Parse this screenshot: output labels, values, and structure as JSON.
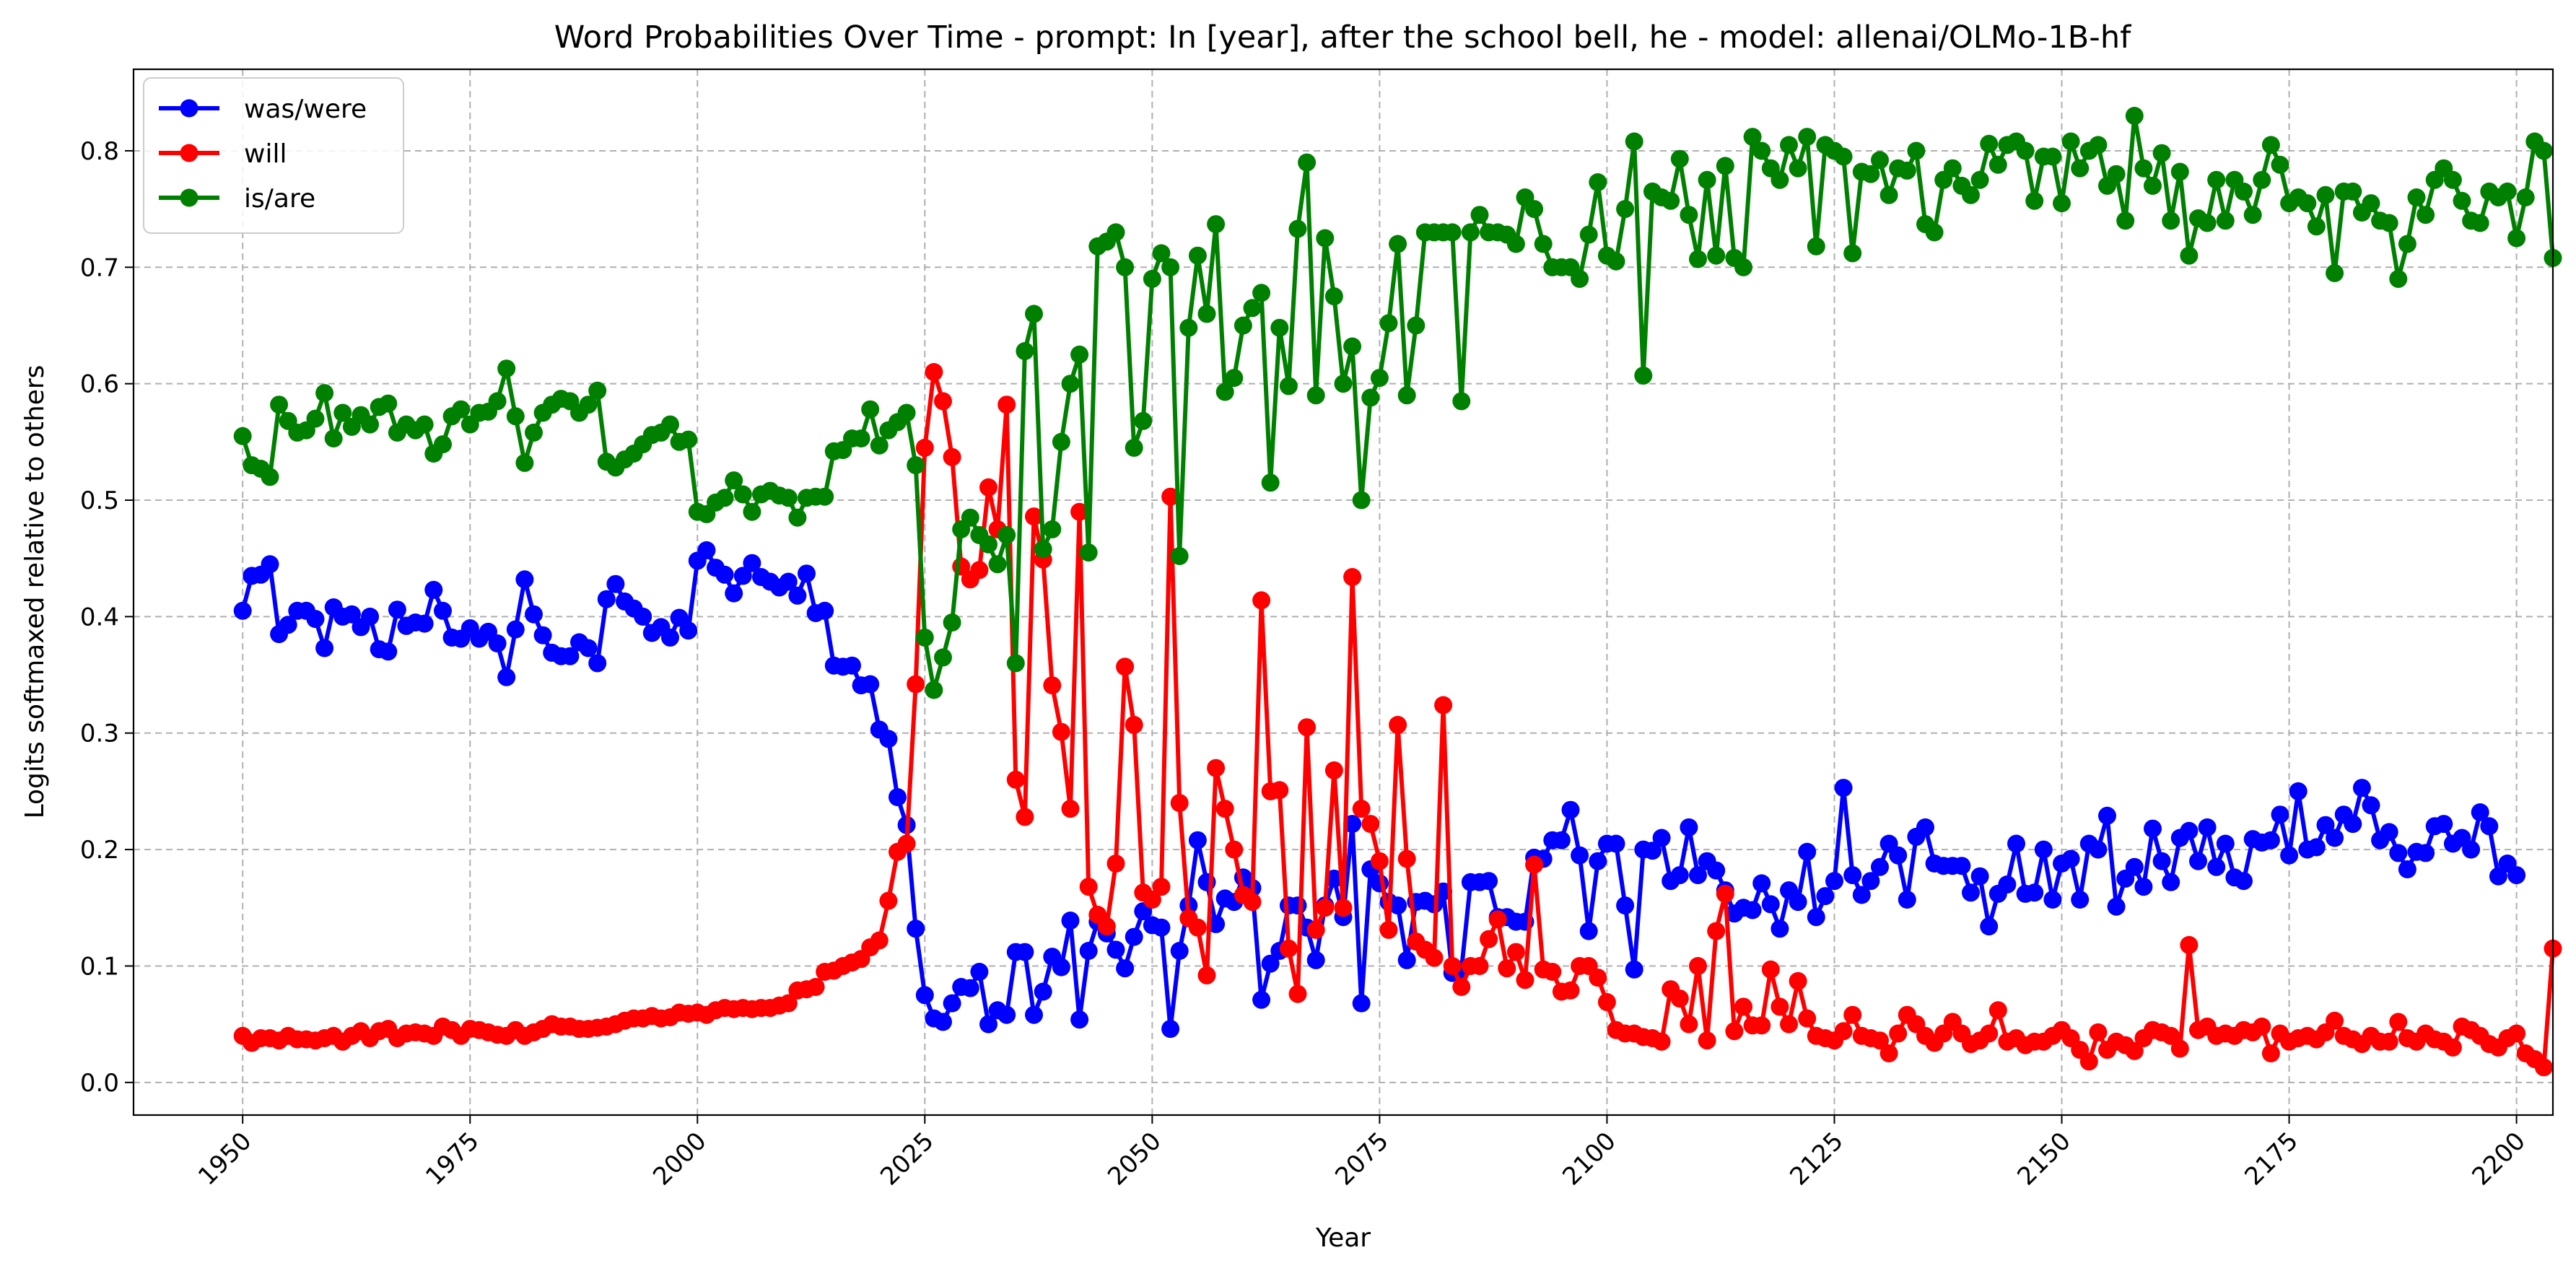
{
  "chart_data": {
    "type": "line",
    "title": "Word Probabilities Over Time - prompt: In [year], after the school bell, he - model: allenai/OLMo-1B-hf",
    "xlabel": "Year",
    "ylabel": "Logits softmaxed relative to others",
    "xlim": [
      1938,
      2204
    ],
    "ylim": [
      -0.028,
      0.87
    ],
    "x_ticks": [
      1950,
      1975,
      2000,
      2025,
      2050,
      2075,
      2100,
      2125,
      2150,
      2175,
      2200
    ],
    "y_ticks": [
      0.0,
      0.1,
      0.2,
      0.3,
      0.4,
      0.5,
      0.6,
      0.7,
      0.8
    ],
    "x_tick_labels": [
      "1950",
      "1975",
      "2000",
      "2025",
      "2050",
      "2075",
      "2100",
      "2125",
      "2150",
      "2175",
      "2200"
    ],
    "y_tick_labels": [
      "0.0",
      "0.1",
      "0.2",
      "0.3",
      "0.4",
      "0.5",
      "0.6",
      "0.7",
      "0.8"
    ],
    "grid": true,
    "legend_position": "top-left",
    "x_start": 1950,
    "x_end": 2200,
    "series": [
      {
        "name": "was/were",
        "color": "#0000ff",
        "values": [
          0.405,
          0.435,
          0.436,
          0.445,
          0.385,
          0.393,
          0.405,
          0.405,
          0.398,
          0.373,
          0.408,
          0.4,
          0.402,
          0.391,
          0.4,
          0.372,
          0.37,
          0.406,
          0.392,
          0.395,
          0.394,
          0.423,
          0.405,
          0.382,
          0.381,
          0.39,
          0.381,
          0.387,
          0.377,
          0.348,
          0.389,
          0.432,
          0.402,
          0.384,
          0.369,
          0.366,
          0.366,
          0.378,
          0.373,
          0.36,
          0.415,
          0.428,
          0.413,
          0.407,
          0.4,
          0.386,
          0.391,
          0.382,
          0.399,
          0.388,
          0.448,
          0.457,
          0.442,
          0.436,
          0.42,
          0.435,
          0.446,
          0.434,
          0.43,
          0.425,
          0.43,
          0.418,
          0.437,
          0.403,
          0.405,
          0.358,
          0.357,
          0.358,
          0.341,
          0.342,
          0.303,
          0.295,
          0.245,
          0.221,
          0.132,
          0.075,
          0.055,
          0.052,
          0.068,
          0.082,
          0.081,
          0.095,
          0.05,
          0.062,
          0.058,
          0.112,
          0.112,
          0.058,
          0.078,
          0.108,
          0.099,
          0.139,
          0.054,
          0.113,
          0.138,
          0.128,
          0.114,
          0.098,
          0.125,
          0.147,
          0.135,
          0.133,
          0.046,
          0.113,
          0.152,
          0.208,
          0.172,
          0.136,
          0.158,
          0.155,
          0.176,
          0.167,
          0.071,
          0.102,
          0.113,
          0.152,
          0.152,
          0.133,
          0.105,
          0.152,
          0.175,
          0.142,
          0.222,
          0.068,
          0.183,
          0.171,
          0.155,
          0.152,
          0.105,
          0.155,
          0.156,
          0.153,
          0.164,
          0.094,
          0.097,
          0.172,
          0.172,
          0.173,
          0.142,
          0.142,
          0.138,
          0.138,
          0.193,
          0.192,
          0.208,
          0.208,
          0.234,
          0.195,
          0.13,
          0.19,
          0.205,
          0.205,
          0.152,
          0.097,
          0.2,
          0.199,
          0.21,
          0.173,
          0.178,
          0.219,
          0.178,
          0.19,
          0.182,
          0.165,
          0.145,
          0.15,
          0.148,
          0.171,
          0.153,
          0.132,
          0.165,
          0.155,
          0.198,
          0.142,
          0.16,
          0.173,
          0.253,
          0.178,
          0.161,
          0.173,
          0.185,
          0.205,
          0.195,
          0.157,
          0.211,
          0.219,
          0.188,
          0.186,
          0.186,
          0.186,
          0.163,
          0.177,
          0.134,
          0.162,
          0.17,
          0.205,
          0.162,
          0.163,
          0.2,
          0.157,
          0.188,
          0.192,
          0.157,
          0.205,
          0.2,
          0.229,
          0.151,
          0.175,
          0.185,
          0.168,
          0.218,
          0.19,
          0.172,
          0.21,
          0.216,
          0.19,
          0.219,
          0.185,
          0.205,
          0.176,
          0.173,
          0.209,
          0.206,
          0.208,
          0.23,
          0.195,
          0.25,
          0.2,
          0.202,
          0.221,
          0.21,
          0.23,
          0.222,
          0.253,
          0.238,
          0.208,
          0.215,
          0.197,
          0.183,
          0.198,
          0.197,
          0.22,
          0.222,
          0.205,
          0.21,
          0.2,
          0.232,
          0.22,
          0.177,
          0.188,
          0.178
        ]
      },
      {
        "name": "will",
        "color": "#ff0000",
        "values": [
          0.04,
          0.034,
          0.038,
          0.038,
          0.036,
          0.04,
          0.037,
          0.037,
          0.036,
          0.038,
          0.04,
          0.035,
          0.04,
          0.044,
          0.038,
          0.044,
          0.046,
          0.038,
          0.042,
          0.043,
          0.042,
          0.04,
          0.048,
          0.045,
          0.04,
          0.046,
          0.045,
          0.043,
          0.041,
          0.04,
          0.045,
          0.04,
          0.043,
          0.046,
          0.05,
          0.048,
          0.048,
          0.046,
          0.046,
          0.047,
          0.048,
          0.05,
          0.053,
          0.055,
          0.055,
          0.057,
          0.055,
          0.056,
          0.06,
          0.059,
          0.06,
          0.058,
          0.062,
          0.064,
          0.063,
          0.064,
          0.063,
          0.064,
          0.064,
          0.066,
          0.068,
          0.079,
          0.08,
          0.082,
          0.095,
          0.096,
          0.1,
          0.103,
          0.106,
          0.116,
          0.122,
          0.156,
          0.198,
          0.205,
          0.342,
          0.545,
          0.61,
          0.585,
          0.537,
          0.443,
          0.432,
          0.44,
          0.511,
          0.475,
          0.582,
          0.26,
          0.228,
          0.486,
          0.449,
          0.341,
          0.301,
          0.235,
          0.49,
          0.168,
          0.144,
          0.134,
          0.188,
          0.357,
          0.307,
          0.163,
          0.157,
          0.168,
          0.503,
          0.24,
          0.141,
          0.133,
          0.092,
          0.27,
          0.235,
          0.2,
          0.161,
          0.155,
          0.414,
          0.25,
          0.251,
          0.115,
          0.076,
          0.305,
          0.131,
          0.15,
          0.268,
          0.15,
          0.434,
          0.235,
          0.222,
          0.19,
          0.131,
          0.307,
          0.192,
          0.121,
          0.114,
          0.107,
          0.324,
          0.1,
          0.082,
          0.1,
          0.1,
          0.123,
          0.14,
          0.098,
          0.112,
          0.088,
          0.187,
          0.097,
          0.095,
          0.078,
          0.079,
          0.1,
          0.1,
          0.09,
          0.069,
          0.045,
          0.042,
          0.042,
          0.039,
          0.038,
          0.035,
          0.08,
          0.072,
          0.05,
          0.1,
          0.036,
          0.13,
          0.162,
          0.044,
          0.065,
          0.049,
          0.049,
          0.097,
          0.065,
          0.05,
          0.087,
          0.055,
          0.04,
          0.038,
          0.036,
          0.044,
          0.058,
          0.04,
          0.038,
          0.036,
          0.025,
          0.042,
          0.058,
          0.05,
          0.04,
          0.034,
          0.042,
          0.052,
          0.042,
          0.033,
          0.036,
          0.042,
          0.062,
          0.035,
          0.038,
          0.032,
          0.035,
          0.035,
          0.04,
          0.045,
          0.038,
          0.028,
          0.018,
          0.043,
          0.028,
          0.035,
          0.032,
          0.027,
          0.038,
          0.045,
          0.043,
          0.04,
          0.029,
          0.118,
          0.045,
          0.048,
          0.04,
          0.042,
          0.04,
          0.045,
          0.043,
          0.048,
          0.025,
          0.042,
          0.035,
          0.038,
          0.04,
          0.037,
          0.043,
          0.053,
          0.04,
          0.037,
          0.033,
          0.04,
          0.035,
          0.035,
          0.052,
          0.038,
          0.035,
          0.042,
          0.037,
          0.035,
          0.03,
          0.048,
          0.045,
          0.04,
          0.033,
          0.03,
          0.038,
          0.042,
          0.025,
          0.02,
          0.013,
          0.115
        ]
      },
      {
        "name": "is/are",
        "color": "#008000",
        "values": [
          0.555,
          0.53,
          0.527,
          0.52,
          0.582,
          0.568,
          0.558,
          0.56,
          0.57,
          0.592,
          0.553,
          0.575,
          0.563,
          0.573,
          0.565,
          0.58,
          0.583,
          0.558,
          0.565,
          0.56,
          0.565,
          0.54,
          0.548,
          0.572,
          0.578,
          0.565,
          0.575,
          0.576,
          0.585,
          0.613,
          0.572,
          0.532,
          0.558,
          0.575,
          0.582,
          0.587,
          0.585,
          0.575,
          0.582,
          0.594,
          0.533,
          0.528,
          0.535,
          0.54,
          0.548,
          0.556,
          0.558,
          0.565,
          0.55,
          0.552,
          0.49,
          0.488,
          0.498,
          0.502,
          0.517,
          0.505,
          0.49,
          0.505,
          0.508,
          0.504,
          0.502,
          0.485,
          0.502,
          0.503,
          0.503,
          0.542,
          0.543,
          0.553,
          0.553,
          0.578,
          0.547,
          0.56,
          0.567,
          0.575,
          0.53,
          0.382,
          0.337,
          0.365,
          0.395,
          0.475,
          0.485,
          0.47,
          0.462,
          0.445,
          0.47,
          0.36,
          0.628,
          0.66,
          0.458,
          0.475,
          0.55,
          0.6,
          0.625,
          0.455,
          0.718,
          0.722,
          0.73,
          0.7,
          0.545,
          0.568,
          0.69,
          0.712,
          0.7,
          0.452,
          0.648,
          0.71,
          0.66,
          0.737,
          0.593,
          0.605,
          0.65,
          0.665,
          0.678,
          0.515,
          0.648,
          0.598,
          0.733,
          0.79,
          0.59,
          0.725,
          0.675,
          0.6,
          0.632,
          0.5,
          0.588,
          0.605,
          0.652,
          0.72,
          0.59,
          0.65,
          0.73,
          0.73,
          0.73,
          0.73,
          0.585,
          0.73,
          0.745,
          0.73,
          0.73,
          0.728,
          0.72,
          0.76,
          0.75,
          0.72,
          0.7,
          0.7,
          0.7,
          0.69,
          0.728,
          0.773,
          0.71,
          0.705,
          0.75,
          0.808,
          0.607,
          0.765,
          0.76,
          0.757,
          0.793,
          0.745,
          0.707,
          0.775,
          0.71,
          0.787,
          0.708,
          0.7,
          0.812,
          0.8,
          0.785,
          0.775,
          0.805,
          0.785,
          0.812,
          0.718,
          0.805,
          0.8,
          0.795,
          0.712,
          0.782,
          0.78,
          0.792,
          0.762,
          0.785,
          0.783,
          0.8,
          0.737,
          0.73,
          0.775,
          0.785,
          0.77,
          0.762,
          0.775,
          0.806,
          0.788,
          0.805,
          0.808,
          0.8,
          0.757,
          0.795,
          0.795,
          0.755,
          0.808,
          0.785,
          0.8,
          0.805,
          0.77,
          0.78,
          0.74,
          0.83,
          0.785,
          0.77,
          0.798,
          0.74,
          0.782,
          0.71,
          0.742,
          0.738,
          0.775,
          0.74,
          0.775,
          0.765,
          0.745,
          0.775,
          0.805,
          0.788,
          0.755,
          0.76,
          0.755,
          0.735,
          0.762,
          0.695,
          0.765,
          0.765,
          0.747,
          0.755,
          0.74,
          0.738,
          0.69,
          0.72,
          0.76,
          0.745,
          0.775,
          0.785,
          0.775,
          0.757,
          0.74,
          0.738,
          0.765,
          0.76,
          0.765,
          0.725,
          0.76,
          0.808,
          0.8,
          0.708
        ]
      }
    ]
  }
}
